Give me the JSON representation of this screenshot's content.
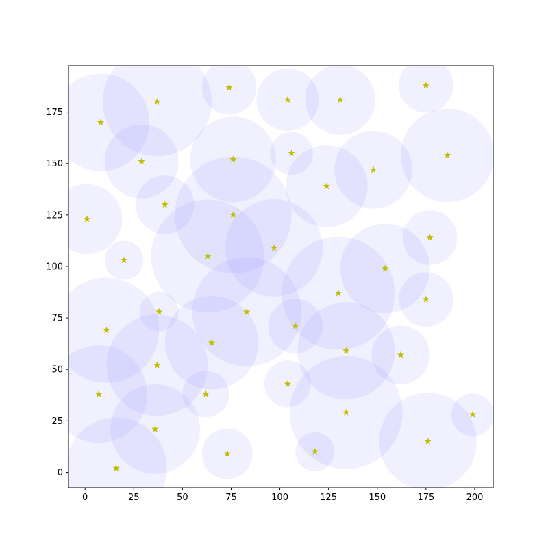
{
  "chart_data": {
    "type": "scatter",
    "title": "",
    "xlabel": "",
    "ylabel": "",
    "xlim": [
      -8.5,
      209.5
    ],
    "ylim": [
      -7.5,
      197.5
    ],
    "xticks": [
      0,
      25,
      50,
      75,
      100,
      125,
      150,
      175,
      200
    ],
    "yticks": [
      0,
      25,
      50,
      75,
      100,
      125,
      150,
      175
    ],
    "grid": false,
    "marker": "star",
    "marker_color": "#bfbf00",
    "circle_fill": "#8080ff",
    "circle_opacity": 0.12,
    "points": [
      {
        "x": 8,
        "y": 170,
        "r": 25
      },
      {
        "x": 37,
        "y": 180,
        "r": 28
      },
      {
        "x": 74,
        "y": 187,
        "r": 14
      },
      {
        "x": 104,
        "y": 181,
        "r": 16
      },
      {
        "x": 131,
        "y": 181,
        "r": 18
      },
      {
        "x": 175,
        "y": 188,
        "r": 14
      },
      {
        "x": 29,
        "y": 151,
        "r": 19
      },
      {
        "x": 76,
        "y": 152,
        "r": 22
      },
      {
        "x": 106,
        "y": 155,
        "r": 11
      },
      {
        "x": 124,
        "y": 139,
        "r": 21
      },
      {
        "x": 148,
        "y": 147,
        "r": 20
      },
      {
        "x": 186,
        "y": 154,
        "r": 24
      },
      {
        "x": 1,
        "y": 123,
        "r": 18
      },
      {
        "x": 41,
        "y": 130,
        "r": 15
      },
      {
        "x": 76,
        "y": 125,
        "r": 30
      },
      {
        "x": 63,
        "y": 105,
        "r": 29
      },
      {
        "x": 97,
        "y": 109,
        "r": 25
      },
      {
        "x": 20,
        "y": 103,
        "r": 10
      },
      {
        "x": 177,
        "y": 114,
        "r": 14
      },
      {
        "x": 154,
        "y": 99,
        "r": 23
      },
      {
        "x": 130,
        "y": 87,
        "r": 29
      },
      {
        "x": 175,
        "y": 84,
        "r": 14
      },
      {
        "x": 38,
        "y": 78,
        "r": 10
      },
      {
        "x": 83,
        "y": 78,
        "r": 28
      },
      {
        "x": 108,
        "y": 71,
        "r": 14
      },
      {
        "x": 11,
        "y": 69,
        "r": 27
      },
      {
        "x": 65,
        "y": 63,
        "r": 24
      },
      {
        "x": 134,
        "y": 59,
        "r": 25
      },
      {
        "x": 162,
        "y": 57,
        "r": 15
      },
      {
        "x": 37,
        "y": 52,
        "r": 26
      },
      {
        "x": 7,
        "y": 38,
        "r": 25
      },
      {
        "x": 62,
        "y": 38,
        "r": 12
      },
      {
        "x": 104,
        "y": 43,
        "r": 12
      },
      {
        "x": 134,
        "y": 29,
        "r": 29
      },
      {
        "x": 199,
        "y": 28,
        "r": 11
      },
      {
        "x": 36,
        "y": 21,
        "r": 23
      },
      {
        "x": 176,
        "y": 15,
        "r": 25
      },
      {
        "x": 73,
        "y": 9,
        "r": 13
      },
      {
        "x": 118,
        "y": 10,
        "r": 10
      },
      {
        "x": 16,
        "y": 2,
        "r": 26
      }
    ]
  }
}
